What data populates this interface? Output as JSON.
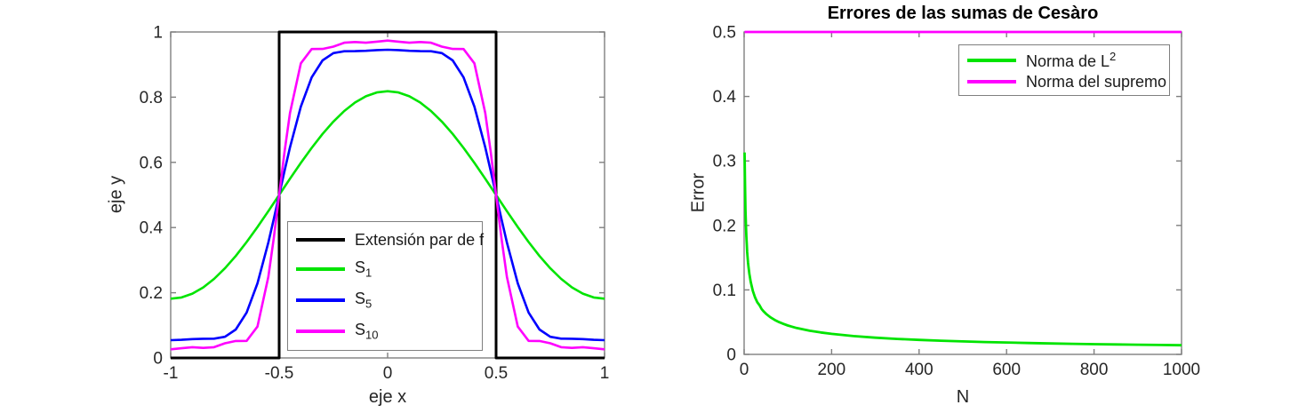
{
  "figure": {
    "background": "#ffffff",
    "axis_color": "#7f7f7f",
    "tick_label_color": "#262626"
  },
  "chart_data": [
    {
      "type": "line",
      "title": "",
      "xlabel": "eje x",
      "ylabel": "eje y",
      "xlim": [
        -1,
        1
      ],
      "ylim": [
        0,
        1
      ],
      "grid": false,
      "xticks": [
        -1,
        -0.5,
        0,
        0.5,
        1
      ],
      "xtick_labels": [
        "-1",
        "-0.5",
        "0",
        "0.5",
        "1"
      ],
      "yticks": [
        0,
        0.2,
        0.4,
        0.6,
        0.8,
        1
      ],
      "ytick_labels": [
        "0",
        "0.2",
        "0.4",
        "0.6",
        "0.8",
        "1"
      ],
      "legend": {
        "position": "inside-bottom-center",
        "entries": [
          {
            "label": "Extensión par de f",
            "color": "#000000"
          },
          {
            "base": "S",
            "sub": "1",
            "color": "#00e400"
          },
          {
            "base": "S",
            "sub": "5",
            "color": "#0000ff"
          },
          {
            "base": "S",
            "sub": "10",
            "color": "#ff00ff"
          }
        ]
      },
      "series": [
        {
          "name": "Extensión par de f",
          "color": "#000000",
          "width": 3,
          "x": [
            -1,
            -0.5,
            -0.5,
            0.5,
            0.5,
            1
          ],
          "y": [
            0,
            0,
            1,
            1,
            0,
            0
          ]
        },
        {
          "name": "S_1",
          "color": "#00e400",
          "width": 2.6,
          "x": [
            -1,
            -0.95,
            -0.9,
            -0.85,
            -0.8,
            -0.75,
            -0.7,
            -0.65,
            -0.6,
            -0.55,
            -0.5,
            -0.45,
            -0.4,
            -0.35,
            -0.3,
            -0.25,
            -0.2,
            -0.15,
            -0.1,
            -0.05,
            0,
            0.05,
            0.1,
            0.15,
            0.2,
            0.25,
            0.3,
            0.35,
            0.4,
            0.45,
            0.5,
            0.55,
            0.6,
            0.65,
            0.7,
            0.75,
            0.8,
            0.85,
            0.9,
            0.95,
            1
          ],
          "y": [
            0.1817,
            0.1856,
            0.1973,
            0.2164,
            0.2425,
            0.2749,
            0.3129,
            0.3555,
            0.4016,
            0.4502,
            0.5,
            0.5498,
            0.5984,
            0.6445,
            0.6871,
            0.7251,
            0.7575,
            0.7836,
            0.8027,
            0.8144,
            0.8183,
            0.8144,
            0.8027,
            0.7836,
            0.7575,
            0.7251,
            0.6871,
            0.6445,
            0.5984,
            0.5498,
            0.5,
            0.4502,
            0.4016,
            0.3555,
            0.3129,
            0.2749,
            0.2425,
            0.2164,
            0.1973,
            0.1856,
            0.1817
          ]
        },
        {
          "name": "S_5",
          "color": "#0000ff",
          "width": 2.6,
          "x": [
            -1,
            -0.95,
            -0.9,
            -0.85,
            -0.8,
            -0.75,
            -0.7,
            -0.65,
            -0.6,
            -0.55,
            -0.525,
            -0.5,
            -0.475,
            -0.45,
            -0.4,
            -0.35,
            -0.3,
            -0.25,
            -0.2,
            -0.15,
            -0.1,
            -0.05,
            0,
            0.05,
            0.1,
            0.15,
            0.2,
            0.25,
            0.3,
            0.35,
            0.4,
            0.45,
            0.475,
            0.5,
            0.525,
            0.55,
            0.6,
            0.65,
            0.7,
            0.75,
            0.8,
            0.85,
            0.9,
            0.95,
            1
          ],
          "y": [
            0.0544,
            0.0555,
            0.0578,
            0.0589,
            0.0592,
            0.0648,
            0.0873,
            0.1393,
            0.229,
            0.3538,
            0.4255,
            0.5,
            0.5745,
            0.6462,
            0.771,
            0.8607,
            0.9127,
            0.9352,
            0.9408,
            0.9411,
            0.9422,
            0.9445,
            0.9456,
            0.9445,
            0.9422,
            0.9411,
            0.9408,
            0.9352,
            0.9127,
            0.8607,
            0.771,
            0.6462,
            0.5745,
            0.5,
            0.4255,
            0.3538,
            0.229,
            0.1393,
            0.0873,
            0.0648,
            0.0592,
            0.0589,
            0.0578,
            0.0555,
            0.0544
          ]
        },
        {
          "name": "S_10",
          "color": "#ff00ff",
          "width": 2.6,
          "x": [
            -1,
            -0.95,
            -0.9,
            -0.85,
            -0.8,
            -0.75,
            -0.7,
            -0.65,
            -0.6,
            -0.55,
            -0.525,
            -0.5,
            -0.475,
            -0.45,
            -0.4,
            -0.35,
            -0.3,
            -0.25,
            -0.2,
            -0.15,
            -0.1,
            -0.05,
            0,
            0.05,
            0.1,
            0.15,
            0.2,
            0.25,
            0.3,
            0.35,
            0.4,
            0.45,
            0.475,
            0.5,
            0.525,
            0.55,
            0.6,
            0.65,
            0.7,
            0.75,
            0.8,
            0.85,
            0.9,
            0.95,
            1
          ],
          "y": [
            0.0263,
            0.0298,
            0.0331,
            0.0308,
            0.0329,
            0.045,
            0.052,
            0.0523,
            0.0961,
            0.2481,
            0.3664,
            0.5,
            0.6336,
            0.7519,
            0.9039,
            0.9477,
            0.948,
            0.955,
            0.9671,
            0.9692,
            0.9669,
            0.9702,
            0.9737,
            0.9702,
            0.9669,
            0.9692,
            0.9671,
            0.955,
            0.948,
            0.9477,
            0.9039,
            0.7519,
            0.6336,
            0.5,
            0.3664,
            0.2481,
            0.0961,
            0.0523,
            0.052,
            0.045,
            0.0329,
            0.0308,
            0.0331,
            0.0298,
            0.0263
          ]
        }
      ]
    },
    {
      "type": "line",
      "title": "Errores de las sumas de Cesàro",
      "xlabel": "N",
      "ylabel": "Error",
      "xlim": [
        0,
        1000
      ],
      "ylim": [
        0,
        0.5
      ],
      "grid": false,
      "xticks": [
        0,
        200,
        400,
        600,
        800,
        1000
      ],
      "xtick_labels": [
        "0",
        "200",
        "400",
        "600",
        "800",
        "1000"
      ],
      "yticks": [
        0,
        0.1,
        0.2,
        0.3,
        0.4,
        0.5
      ],
      "ytick_labels": [
        "0",
        "0.1",
        "0.2",
        "0.3",
        "0.4",
        "0.5"
      ],
      "legend": {
        "position": "inside-top-right",
        "entries": [
          {
            "base": "Norma de L",
            "sup": "2",
            "color": "#00e400"
          },
          {
            "label": "Norma del supremo",
            "color": "#ff00ff"
          }
        ]
      },
      "series": [
        {
          "name": "Norma de L^2",
          "color": "#00e400",
          "width": 2.8,
          "x": [
            1,
            2,
            3,
            4,
            5,
            6,
            7,
            8,
            9,
            10,
            12,
            15,
            20,
            25,
            30,
            35,
            40,
            45,
            50,
            60,
            70,
            80,
            90,
            100,
            120,
            150,
            175,
            200,
            250,
            300,
            350,
            400,
            450,
            500,
            550,
            600,
            650,
            700,
            750,
            800,
            850,
            900,
            950,
            1000
          ],
          "y": [
            0.3131,
            0.2643,
            0.224,
            0.2026,
            0.1834,
            0.1707,
            0.159,
            0.1504,
            0.1422,
            0.1359,
            0.125,
            0.1125,
            0.0983,
            0.0883,
            0.0809,
            0.0764,
            0.0703,
            0.0664,
            0.0629,
            0.0576,
            0.0534,
            0.05,
            0.0472,
            0.0447,
            0.0409,
            0.0366,
            0.034,
            0.0318,
            0.0284,
            0.0259,
            0.024,
            0.0225,
            0.0212,
            0.0201,
            0.0192,
            0.0184,
            0.0176,
            0.017,
            0.0164,
            0.0159,
            0.0154,
            0.015,
            0.0146,
            0.0142
          ]
        },
        {
          "name": "Norma del supremo",
          "color": "#ff00ff",
          "width": 2.8,
          "x": [
            1,
            1000
          ],
          "y": [
            0.5,
            0.5
          ]
        }
      ]
    }
  ]
}
